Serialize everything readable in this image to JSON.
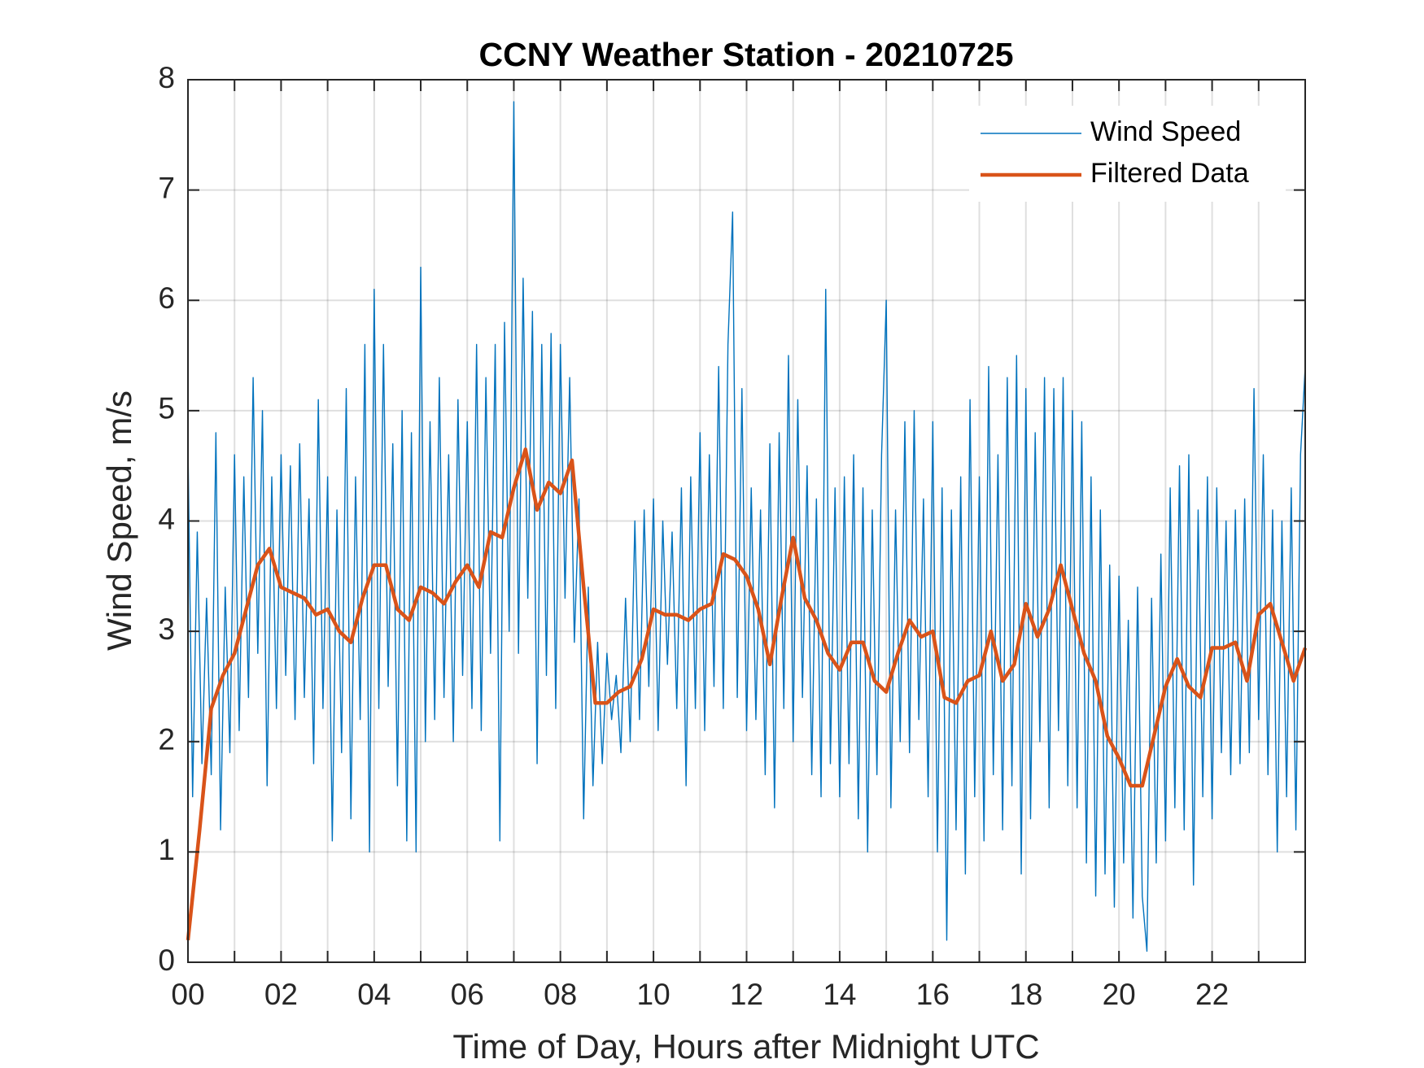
{
  "chart_data": {
    "type": "line",
    "title": "CCNY Weather Station - 20210725",
    "x_label": "Time of Day, Hours after Midnight UTC",
    "y_label": "Wind Speed, m/s",
    "xlim": [
      0,
      24
    ],
    "ylim": [
      0,
      8
    ],
    "xticks": [
      {
        "value": 0,
        "label": "00"
      },
      {
        "value": 2,
        "label": "02"
      },
      {
        "value": 4,
        "label": "04"
      },
      {
        "value": 6,
        "label": "06"
      },
      {
        "value": 8,
        "label": "08"
      },
      {
        "value": 10,
        "label": "10"
      },
      {
        "value": 12,
        "label": "12"
      },
      {
        "value": 14,
        "label": "14"
      },
      {
        "value": 16,
        "label": "16"
      },
      {
        "value": 18,
        "label": "18"
      },
      {
        "value": 20,
        "label": "20"
      },
      {
        "value": 22,
        "label": "22"
      }
    ],
    "xminorticks": [
      1,
      3,
      5,
      7,
      9,
      11,
      13,
      15,
      17,
      19,
      21,
      23
    ],
    "yticks": [
      0,
      1,
      2,
      3,
      4,
      5,
      6,
      7,
      8
    ],
    "grid": true,
    "legend_position": "upper-right",
    "series": [
      {
        "name": "Wind Speed",
        "color": "#0072bd",
        "x": [
          0,
          0.1,
          0.2,
          0.3,
          0.4,
          0.5,
          0.6,
          0.7,
          0.8,
          0.9,
          1,
          1.1,
          1.2,
          1.3,
          1.4,
          1.5,
          1.6,
          1.7,
          1.8,
          1.9,
          2,
          2.1,
          2.2,
          2.3,
          2.4,
          2.5,
          2.6,
          2.7,
          2.8,
          2.9,
          3,
          3.1,
          3.2,
          3.3,
          3.4,
          3.5,
          3.6,
          3.7,
          3.8,
          3.9,
          4,
          4.1,
          4.2,
          4.3,
          4.4,
          4.5,
          4.6,
          4.7,
          4.8,
          4.9,
          5,
          5.1,
          5.2,
          5.3,
          5.4,
          5.5,
          5.6,
          5.7,
          5.8,
          5.9,
          6,
          6.1,
          6.2,
          6.3,
          6.4,
          6.5,
          6.6,
          6.7,
          6.8,
          6.9,
          7,
          7.1,
          7.2,
          7.3,
          7.4,
          7.5,
          7.6,
          7.7,
          7.8,
          7.9,
          8,
          8.1,
          8.2,
          8.3,
          8.4,
          8.5,
          8.6,
          8.7,
          8.8,
          8.9,
          9,
          9.1,
          9.2,
          9.3,
          9.4,
          9.5,
          9.6,
          9.7,
          9.8,
          9.9,
          10,
          10.1,
          10.2,
          10.3,
          10.4,
          10.5,
          10.6,
          10.7,
          10.8,
          10.9,
          11,
          11.1,
          11.2,
          11.3,
          11.4,
          11.5,
          11.6,
          11.7,
          11.8,
          11.9,
          12,
          12.1,
          12.2,
          12.3,
          12.4,
          12.5,
          12.6,
          12.7,
          12.8,
          12.9,
          13,
          13.1,
          13.2,
          13.3,
          13.4,
          13.5,
          13.6,
          13.7,
          13.8,
          13.9,
          14,
          14.1,
          14.2,
          14.3,
          14.4,
          14.5,
          14.6,
          14.7,
          14.8,
          14.9,
          15,
          15.1,
          15.2,
          15.3,
          15.4,
          15.5,
          15.6,
          15.7,
          15.8,
          15.9,
          16,
          16.1,
          16.2,
          16.3,
          16.4,
          16.5,
          16.6,
          16.7,
          16.8,
          16.9,
          17,
          17.1,
          17.2,
          17.3,
          17.4,
          17.5,
          17.6,
          17.7,
          17.8,
          17.9,
          18,
          18.1,
          18.2,
          18.3,
          18.4,
          18.5,
          18.6,
          18.7,
          18.8,
          18.9,
          19,
          19.1,
          19.2,
          19.3,
          19.4,
          19.5,
          19.6,
          19.7,
          19.8,
          19.9,
          20,
          20.1,
          20.2,
          20.3,
          20.4,
          20.5,
          20.6,
          20.7,
          20.8,
          20.9,
          21,
          21.1,
          21.2,
          21.3,
          21.4,
          21.5,
          21.6,
          21.7,
          21.8,
          21.9,
          22,
          22.1,
          22.2,
          22.3,
          22.4,
          22.5,
          22.6,
          22.7,
          22.8,
          22.9,
          23,
          23.1,
          23.2,
          23.3,
          23.4,
          23.5,
          23.6,
          23.7,
          23.8,
          23.9,
          24
        ],
        "values": [
          4.7,
          1.5,
          3.9,
          1.8,
          3.3,
          1.7,
          4.8,
          1.2,
          3.4,
          1.9,
          4.6,
          2.1,
          4.4,
          2.4,
          5.3,
          2.8,
          5.0,
          1.6,
          4.4,
          2.3,
          4.6,
          2.6,
          4.5,
          2.2,
          4.7,
          2.4,
          4.2,
          1.8,
          5.1,
          2.3,
          4.4,
          1.1,
          4.1,
          1.9,
          5.2,
          1.3,
          4.4,
          2.2,
          5.6,
          1.0,
          6.1,
          2.3,
          5.6,
          2.5,
          4.7,
          1.6,
          5.0,
          1.1,
          4.8,
          1.0,
          6.3,
          2.0,
          4.9,
          2.2,
          5.3,
          2.4,
          4.6,
          2.0,
          5.1,
          2.6,
          4.9,
          2.3,
          5.6,
          2.1,
          5.3,
          2.8,
          5.6,
          1.1,
          5.8,
          3.0,
          7.8,
          2.8,
          6.2,
          3.3,
          5.9,
          1.8,
          5.6,
          2.6,
          5.7,
          2.3,
          5.6,
          3.3,
          5.3,
          2.9,
          4.2,
          1.3,
          3.4,
          1.6,
          2.9,
          1.8,
          2.8,
          2.2,
          2.6,
          1.9,
          3.3,
          2.0,
          4.0,
          2.2,
          4.1,
          2.5,
          4.2,
          2.1,
          4.0,
          2.7,
          3.9,
          2.3,
          4.3,
          1.6,
          4.4,
          2.3,
          4.8,
          2.1,
          4.6,
          2.5,
          5.4,
          2.3,
          5.6,
          6.8,
          2.4,
          5.2,
          2.1,
          4.3,
          2.2,
          4.1,
          1.7,
          4.7,
          1.4,
          4.8,
          2.3,
          5.5,
          2.0,
          5.1,
          2.4,
          4.5,
          1.7,
          4.2,
          1.5,
          6.1,
          1.8,
          4.3,
          1.5,
          4.4,
          1.8,
          4.6,
          1.3,
          4.3,
          1.0,
          4.1,
          1.7,
          4.6,
          6.0,
          1.4,
          4.1,
          2.0,
          4.9,
          1.9,
          5.0,
          2.2,
          4.2,
          1.5,
          4.9,
          1.0,
          4.3,
          0.2,
          4.1,
          1.2,
          4.4,
          0.8,
          5.1,
          1.5,
          4.4,
          1.1,
          5.4,
          1.7,
          4.6,
          1.2,
          5.3,
          1.6,
          5.5,
          0.8,
          5.2,
          1.3,
          4.8,
          2.0,
          5.3,
          1.4,
          5.2,
          2.1,
          5.3,
          1.6,
          5.0,
          1.4,
          4.9,
          0.9,
          4.4,
          0.6,
          4.1,
          0.8,
          3.6,
          0.5,
          3.5,
          0.9,
          3.1,
          0.4,
          3.4,
          0.6,
          0.1,
          3.3,
          0.9,
          3.7,
          1.1,
          4.3,
          1.4,
          4.5,
          1.2,
          4.6,
          0.7,
          4.1,
          1.5,
          4.4,
          1.3,
          4.3,
          1.9,
          4.0,
          1.7,
          4.1,
          1.8,
          4.2,
          1.9,
          5.2,
          2.2,
          4.6,
          1.7,
          4.1,
          1.0,
          4.0,
          1.5,
          4.3,
          1.2,
          4.6,
          5.4
        ]
      },
      {
        "name": "Filtered Data",
        "color": "#d95319",
        "x": [
          0,
          0.25,
          0.5,
          0.75,
          1,
          1.25,
          1.5,
          1.75,
          2,
          2.25,
          2.5,
          2.75,
          3,
          3.25,
          3.5,
          3.75,
          4,
          4.25,
          4.5,
          4.75,
          5,
          5.25,
          5.5,
          5.75,
          6,
          6.25,
          6.5,
          6.75,
          7,
          7.25,
          7.5,
          7.75,
          8,
          8.25,
          8.5,
          8.75,
          9,
          9.25,
          9.5,
          9.75,
          10,
          10.25,
          10.5,
          10.75,
          11,
          11.25,
          11.5,
          11.75,
          12,
          12.25,
          12.5,
          12.75,
          13,
          13.25,
          13.5,
          13.75,
          14,
          14.25,
          14.5,
          14.75,
          15,
          15.25,
          15.5,
          15.75,
          16,
          16.25,
          16.5,
          16.75,
          17,
          17.25,
          17.5,
          17.75,
          18,
          18.25,
          18.5,
          18.75,
          19,
          19.25,
          19.5,
          19.75,
          20,
          20.25,
          20.5,
          20.75,
          21,
          21.25,
          21.5,
          21.75,
          22,
          22.25,
          22.5,
          22.75,
          23,
          23.25,
          23.5,
          23.75,
          24
        ],
        "values": [
          0.2,
          1.2,
          2.3,
          2.6,
          2.8,
          3.2,
          3.6,
          3.75,
          3.4,
          3.35,
          3.3,
          3.15,
          3.2,
          3.0,
          2.9,
          3.3,
          3.6,
          3.6,
          3.2,
          3.1,
          3.4,
          3.35,
          3.25,
          3.45,
          3.6,
          3.4,
          3.9,
          3.85,
          4.3,
          4.65,
          4.1,
          4.35,
          4.25,
          4.55,
          3.4,
          2.35,
          2.35,
          2.45,
          2.5,
          2.75,
          3.2,
          3.15,
          3.15,
          3.1,
          3.2,
          3.25,
          3.7,
          3.65,
          3.5,
          3.2,
          2.7,
          3.3,
          3.85,
          3.3,
          3.1,
          2.8,
          2.65,
          2.9,
          2.9,
          2.55,
          2.45,
          2.8,
          3.1,
          2.95,
          3.0,
          2.4,
          2.35,
          2.55,
          2.6,
          3.0,
          2.55,
          2.7,
          3.25,
          2.95,
          3.2,
          3.6,
          3.2,
          2.8,
          2.55,
          2.05,
          1.85,
          1.6,
          1.6,
          2.05,
          2.5,
          2.75,
          2.5,
          2.4,
          2.85,
          2.85,
          2.9,
          2.55,
          3.15,
          3.25,
          2.9,
          2.55,
          2.85
        ]
      }
    ]
  }
}
